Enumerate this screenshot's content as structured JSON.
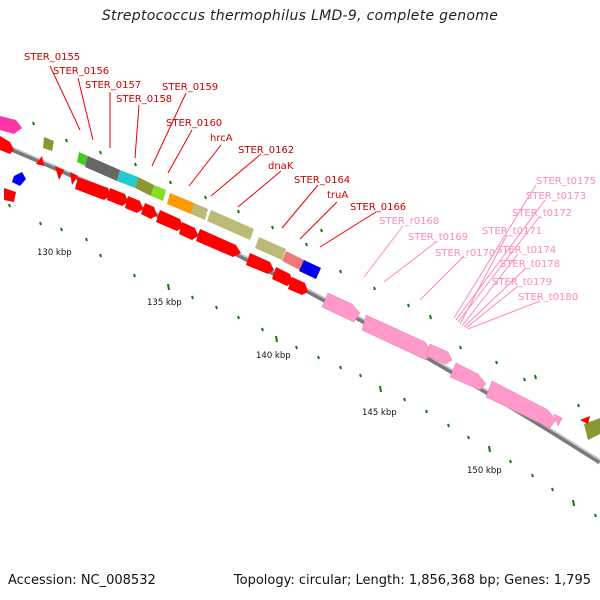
{
  "title": "Streptococcus thermophilus LMD-9, complete genome",
  "footer": {
    "accession": "Accession: NC_008532",
    "summary": "Topology: circular; Length: 1,856,368 bp; Genes: 1,795"
  },
  "colors": {
    "backbone": "#888888",
    "cds_red": "#ff0000",
    "rna_pink": "#ff99cc",
    "label_red": "#cc0000",
    "label_pink": "#ff88bb",
    "tick_green": "#117711"
  },
  "ticks": [
    {
      "label": "130 kbp",
      "position_kbp": 130
    },
    {
      "label": "135 kbp",
      "position_kbp": 135
    },
    {
      "label": "140 kbp",
      "position_kbp": 140
    },
    {
      "label": "145 kbp",
      "position_kbp": 145
    },
    {
      "label": "150 kbp",
      "position_kbp": 150
    }
  ],
  "gene_labels_red": [
    "STER_0155",
    "STER_0156",
    "STER_0157",
    "STER_0158",
    "STER_0159",
    "STER_0160",
    "hrcA",
    "STER_0162",
    "dnaK",
    "STER_0164",
    "truA",
    "STER_0166"
  ],
  "gene_labels_pink": [
    "STER_r0168",
    "STER_t0169",
    "STER_r0170",
    "STER_t0171",
    "STER_t0174",
    "STER_t0178",
    "STER_t0179",
    "STER_t0180",
    "STER_t0175",
    "STER_t0173",
    "STER_t0172"
  ]
}
